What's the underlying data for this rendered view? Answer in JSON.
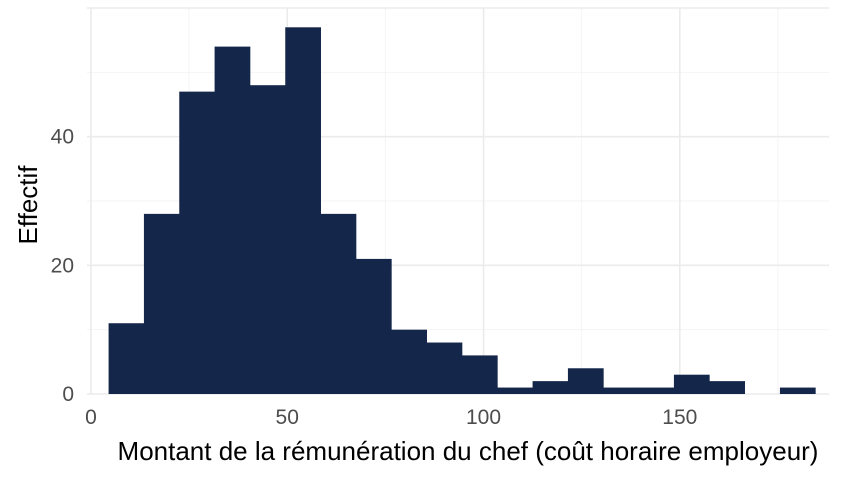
{
  "chart_data": {
    "type": "bar",
    "subtype": "histogram",
    "xlabel": "Montant de la rémunération du chef (coût horaire employeur)",
    "ylabel": "Effectif",
    "xlim": [
      -1,
      188
    ],
    "ylim": [
      0,
      60
    ],
    "x_ticks": [
      0,
      50,
      100,
      150
    ],
    "x_tick_labels": [
      "0",
      "50",
      "100",
      "150"
    ],
    "y_ticks": [
      0,
      20,
      40
    ],
    "y_tick_labels": [
      "0",
      "20",
      "40"
    ],
    "grid": true,
    "legend": "none",
    "bar_color": "#14264a",
    "bins": [
      {
        "start": 4.5,
        "end": 13.5,
        "count": 11
      },
      {
        "start": 13.5,
        "end": 22.5,
        "count": 28
      },
      {
        "start": 22.5,
        "end": 31.5,
        "count": 47
      },
      {
        "start": 31.5,
        "end": 40.5,
        "count": 54
      },
      {
        "start": 40.5,
        "end": 49.5,
        "count": 48
      },
      {
        "start": 49.5,
        "end": 58.5,
        "count": 57
      },
      {
        "start": 58.5,
        "end": 67.5,
        "count": 28
      },
      {
        "start": 67.5,
        "end": 76.5,
        "count": 21
      },
      {
        "start": 76.5,
        "end": 85.5,
        "count": 10
      },
      {
        "start": 85.5,
        "end": 94.5,
        "count": 8
      },
      {
        "start": 94.5,
        "end": 103.5,
        "count": 6
      },
      {
        "start": 103.5,
        "end": 112.5,
        "count": 1
      },
      {
        "start": 112.5,
        "end": 121.5,
        "count": 2
      },
      {
        "start": 121.5,
        "end": 130.5,
        "count": 4
      },
      {
        "start": 130.5,
        "end": 139.5,
        "count": 1
      },
      {
        "start": 139.5,
        "end": 148.5,
        "count": 1
      },
      {
        "start": 148.5,
        "end": 157.5,
        "count": 3
      },
      {
        "start": 157.5,
        "end": 166.5,
        "count": 2
      },
      {
        "start": 166.5,
        "end": 175.5,
        "count": 0
      },
      {
        "start": 175.5,
        "end": 184.5,
        "count": 1
      }
    ]
  }
}
